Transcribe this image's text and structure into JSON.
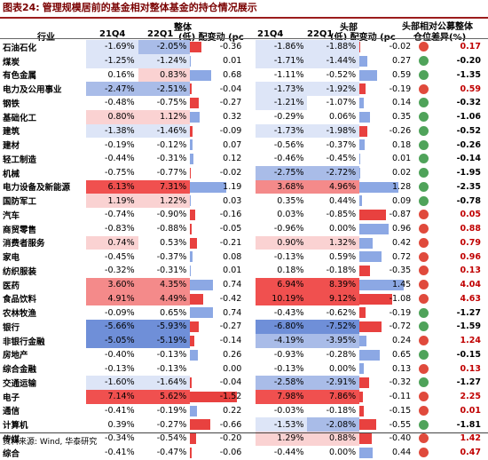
{
  "title": {
    "label": "图表24:",
    "text": "管理规模居前的基金相对整体基金的持仓情况展示"
  },
  "header": {
    "group_overall": "整体",
    "group_top": "头部",
    "group_diff_line1": "头部相对公募整体",
    "group_diff_line2": "仓位差异(%)",
    "col_industry": "行业",
    "col_q1": "21Q4",
    "col_q2": "22Q1",
    "col_change": "(低) 配变动 (pc"
  },
  "colors": {
    "red_strong": "#f0504f",
    "red_mid": "#f48a8a",
    "red_light": "#fad2d2",
    "blue_strong": "#6f8fd8",
    "blue_mid": "#a9bce8",
    "blue_light": "#dde5f7",
    "bar_pos": "#e8413f",
    "bar_neg": "#8ca8e4",
    "dot_pos": "#e04a3c",
    "dot_neg": "#4fa35a",
    "diff_pos": "#c00000"
  },
  "rows": [
    {
      "name": "石油石化",
      "o1": "-1.69%",
      "o2": "-2.05%",
      "oc": "-0.36",
      "h1": "-1.86%",
      "h2": "-1.88%",
      "hc": "-0.02",
      "d": "0.17"
    },
    {
      "name": "煤炭",
      "o1": "-1.25%",
      "o2": "-1.24%",
      "oc": "0.01",
      "h1": "-1.71%",
      "h2": "-1.44%",
      "hc": "0.27",
      "d": "-0.20"
    },
    {
      "name": "有色金属",
      "o1": "0.16%",
      "o2": "0.83%",
      "oc": "0.68",
      "h1": "-1.11%",
      "h2": "-0.52%",
      "hc": "0.59",
      "d": "-1.35"
    },
    {
      "name": "电力及公用事业",
      "o1": "-2.47%",
      "o2": "-2.51%",
      "oc": "-0.04",
      "h1": "-1.73%",
      "h2": "-1.92%",
      "hc": "-0.19",
      "d": "0.59"
    },
    {
      "name": "钢铁",
      "o1": "-0.48%",
      "o2": "-0.75%",
      "oc": "-0.27",
      "h1": "-1.21%",
      "h2": "-1.07%",
      "hc": "0.14",
      "d": "-0.32"
    },
    {
      "name": "基础化工",
      "o1": "0.80%",
      "o2": "1.12%",
      "oc": "0.32",
      "h1": "-0.29%",
      "h2": "0.06%",
      "hc": "0.35",
      "d": "-1.06"
    },
    {
      "name": "建筑",
      "o1": "-1.38%",
      "o2": "-1.46%",
      "oc": "-0.09",
      "h1": "-1.73%",
      "h2": "-1.98%",
      "hc": "-0.26",
      "d": "-0.52"
    },
    {
      "name": "建材",
      "o1": "-0.19%",
      "o2": "-0.12%",
      "oc": "0.07",
      "h1": "-0.56%",
      "h2": "-0.37%",
      "hc": "0.18",
      "d": "-0.26"
    },
    {
      "name": "轻工制造",
      "o1": "-0.44%",
      "o2": "-0.31%",
      "oc": "0.12",
      "h1": "-0.46%",
      "h2": "-0.45%",
      "hc": "0.01",
      "d": "-0.14"
    },
    {
      "name": "机械",
      "o1": "-0.75%",
      "o2": "-0.77%",
      "oc": "-0.02",
      "h1": "-2.75%",
      "h2": "-2.72%",
      "hc": "0.02",
      "d": "-1.95"
    },
    {
      "name": "电力设备及新能源",
      "o1": "6.13%",
      "o2": "7.31%",
      "oc": "1.19",
      "h1": "3.68%",
      "h2": "4.96%",
      "hc": "1.28",
      "d": "-2.35"
    },
    {
      "name": "国防军工",
      "o1": "1.19%",
      "o2": "1.22%",
      "oc": "0.03",
      "h1": "0.35%",
      "h2": "0.44%",
      "hc": "0.09",
      "d": "-0.78"
    },
    {
      "name": "汽车",
      "o1": "-0.74%",
      "o2": "-0.90%",
      "oc": "-0.16",
      "h1": "0.03%",
      "h2": "-0.85%",
      "hc": "-0.87",
      "d": "0.05"
    },
    {
      "name": "商贸零售",
      "o1": "-0.83%",
      "o2": "-0.88%",
      "oc": "-0.05",
      "h1": "-0.96%",
      "h2": "0.00%",
      "hc": "0.96",
      "d": "0.88"
    },
    {
      "name": "消费者服务",
      "o1": "0.74%",
      "o2": "0.53%",
      "oc": "-0.21",
      "h1": "0.90%",
      "h2": "1.32%",
      "hc": "0.42",
      "d": "0.79"
    },
    {
      "name": "家电",
      "o1": "-0.45%",
      "o2": "-0.37%",
      "oc": "0.08",
      "h1": "-0.13%",
      "h2": "0.59%",
      "hc": "0.72",
      "d": "0.96"
    },
    {
      "name": "纺织服装",
      "o1": "-0.32%",
      "o2": "-0.31%",
      "oc": "0.01",
      "h1": "0.18%",
      "h2": "-0.18%",
      "hc": "-0.35",
      "d": "0.13"
    },
    {
      "name": "医药",
      "o1": "3.60%",
      "o2": "4.35%",
      "oc": "0.74",
      "h1": "6.94%",
      "h2": "8.39%",
      "hc": "1.45",
      "d": "4.04"
    },
    {
      "name": "食品饮料",
      "o1": "4.91%",
      "o2": "4.49%",
      "oc": "-0.42",
      "h1": "10.19%",
      "h2": "9.12%",
      "hc": "-1.08",
      "d": "4.63"
    },
    {
      "name": "农林牧渔",
      "o1": "-0.09%",
      "o2": "0.65%",
      "oc": "0.74",
      "h1": "-0.43%",
      "h2": "-0.62%",
      "hc": "-0.19",
      "d": "-1.27"
    },
    {
      "name": "银行",
      "o1": "-5.66%",
      "o2": "-5.93%",
      "oc": "-0.27",
      "h1": "-6.80%",
      "h2": "-7.52%",
      "hc": "-0.72",
      "d": "-1.59"
    },
    {
      "name": "非银行金融",
      "o1": "-5.05%",
      "o2": "-5.19%",
      "oc": "-0.14",
      "h1": "-4.19%",
      "h2": "-3.95%",
      "hc": "0.24",
      "d": "1.24"
    },
    {
      "name": "房地产",
      "o1": "-0.40%",
      "o2": "-0.13%",
      "oc": "0.26",
      "h1": "-0.93%",
      "h2": "-0.28%",
      "hc": "0.65",
      "d": "-0.15"
    },
    {
      "name": "综合金融",
      "o1": "-0.13%",
      "o2": "-0.13%",
      "oc": "0.00",
      "h1": "-0.13%",
      "h2": "0.00%",
      "hc": "0.13",
      "d": "0.13"
    },
    {
      "name": "交通运输",
      "o1": "-1.60%",
      "o2": "-1.64%",
      "oc": "-0.04",
      "h1": "-2.58%",
      "h2": "-2.91%",
      "hc": "-0.32",
      "d": "-1.27"
    },
    {
      "name": "电子",
      "o1": "7.14%",
      "o2": "5.62%",
      "oc": "-1.52",
      "h1": "7.98%",
      "h2": "7.86%",
      "hc": "-0.11",
      "d": "2.25"
    },
    {
      "name": "通信",
      "o1": "-0.41%",
      "o2": "-0.19%",
      "oc": "0.22",
      "h1": "-0.03%",
      "h2": "-0.18%",
      "hc": "-0.15",
      "d": "0.01"
    },
    {
      "name": "计算机",
      "o1": "0.39%",
      "o2": "-0.27%",
      "oc": "-0.66",
      "h1": "-1.53%",
      "h2": "-2.08%",
      "hc": "-0.55",
      "d": "-1.81"
    },
    {
      "name": "传媒",
      "o1": "-0.34%",
      "o2": "-0.54%",
      "oc": "-0.20",
      "h1": "1.29%",
      "h2": "0.88%",
      "hc": "-0.40",
      "d": "1.42"
    },
    {
      "name": "综合",
      "o1": "-0.41%",
      "o2": "-0.47%",
      "oc": "-0.06",
      "h1": "-0.44%",
      "h2": "0.00%",
      "hc": "0.44",
      "d": "0.47"
    }
  ],
  "source": "资料来源: Wind, 华泰研究"
}
